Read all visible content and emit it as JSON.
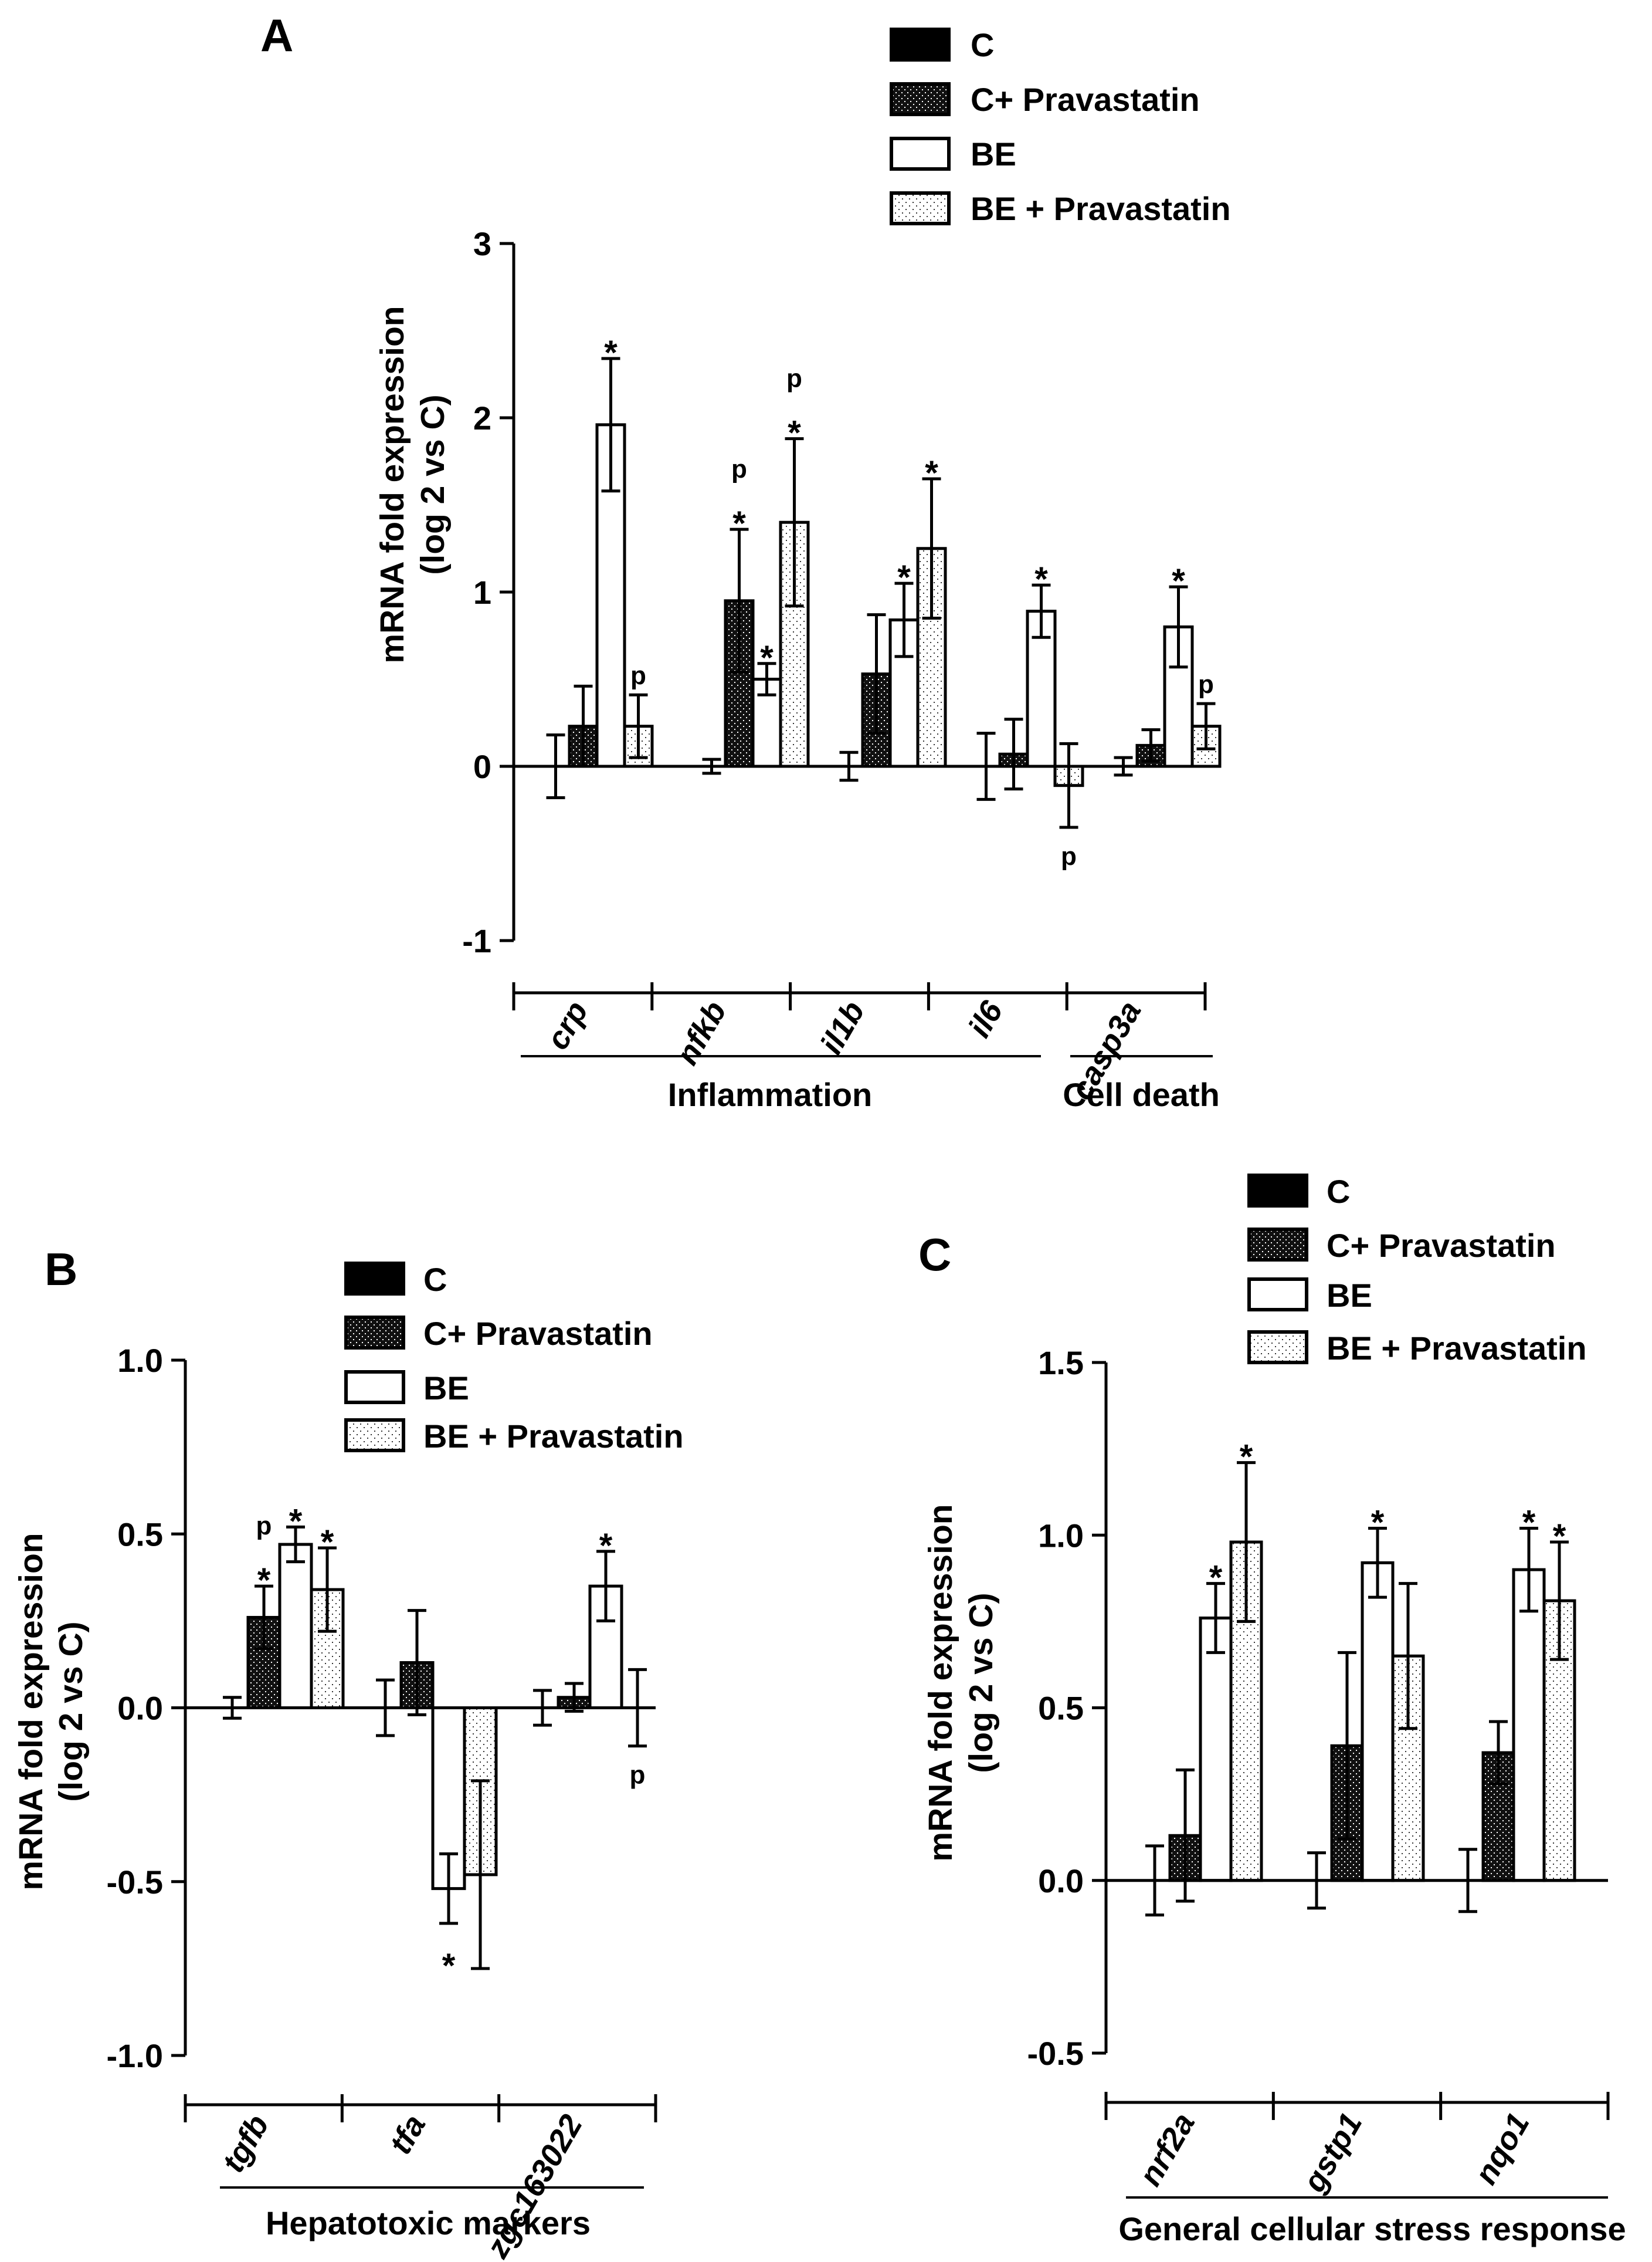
{
  "chart_data": [
    {
      "panel": "A",
      "type": "bar",
      "ylabel": [
        "mRNA fold expression",
        "(log 2 vs C)"
      ],
      "ylim": [
        -1,
        3
      ],
      "yticks": [
        -1,
        0,
        1,
        2,
        3
      ],
      "ytick_labels": [
        "-1",
        "0",
        "1",
        "2",
        "3"
      ],
      "categories": [
        "crp",
        "nfkb",
        "il1b",
        "il6",
        "casp3a"
      ],
      "legend": [
        "C",
        "C+ Pravastatin",
        "BE",
        "BE + Pravastatin"
      ],
      "series": [
        {
          "name": "C",
          "values": [
            0,
            0,
            0,
            0,
            0
          ],
          "errors": [
            0.18,
            0.04,
            0.08,
            0.19,
            0.05
          ]
        },
        {
          "name": "C+ Pravastatin",
          "values": [
            0.23,
            0.95,
            0.53,
            0.07,
            0.12
          ],
          "errors": [
            0.23,
            0.41,
            0.34,
            0.2,
            0.09
          ]
        },
        {
          "name": "BE",
          "values": [
            1.96,
            0.5,
            0.84,
            0.89,
            0.8
          ],
          "errors": [
            0.38,
            0.09,
            0.21,
            0.15,
            0.23
          ]
        },
        {
          "name": "BE + Pravastatin",
          "values": [
            0.23,
            1.4,
            1.25,
            -0.11,
            0.23
          ],
          "errors": [
            0.18,
            0.48,
            0.4,
            0.24,
            0.13
          ]
        }
      ],
      "annotations": [
        {
          "series": 2,
          "category": 0,
          "text": "*",
          "pos": "above"
        },
        {
          "series": 3,
          "category": 0,
          "text": "p",
          "pos": "above"
        },
        {
          "series": 1,
          "category": 1,
          "text": "p",
          "pos": "above2"
        },
        {
          "series": 1,
          "category": 1,
          "text": "*",
          "pos": "above"
        },
        {
          "series": 2,
          "category": 1,
          "text": "*",
          "pos": "above"
        },
        {
          "series": 3,
          "category": 1,
          "text": "p",
          "pos": "above2"
        },
        {
          "series": 3,
          "category": 1,
          "text": "*",
          "pos": "above"
        },
        {
          "series": 2,
          "category": 2,
          "text": "*",
          "pos": "above"
        },
        {
          "series": 3,
          "category": 2,
          "text": "*",
          "pos": "above"
        },
        {
          "series": 2,
          "category": 3,
          "text": "*",
          "pos": "above"
        },
        {
          "series": 3,
          "category": 3,
          "text": "p",
          "pos": "below"
        },
        {
          "series": 2,
          "category": 4,
          "text": "*",
          "pos": "above"
        },
        {
          "series": 3,
          "category": 4,
          "text": "p",
          "pos": "above"
        }
      ],
      "groups": [
        {
          "label": "Inflammation",
          "from": 0,
          "to": 3
        },
        {
          "label": "Cell death",
          "from": 4,
          "to": 4
        }
      ]
    },
    {
      "panel": "B",
      "type": "bar",
      "ylabel": [
        "mRNA fold expression",
        "(log 2 vs C)"
      ],
      "ylim": [
        -1,
        1
      ],
      "yticks": [
        -1,
        -0.5,
        0,
        0.5,
        1
      ],
      "ytick_labels": [
        "-1.0",
        "-0.5",
        "0.0",
        "0.5",
        "1.0"
      ],
      "categories": [
        "tgfb",
        "tfa",
        "zgc163022"
      ],
      "legend": [
        "C",
        "C+ Pravastatin",
        "BE",
        "BE + Pravastatin"
      ],
      "series": [
        {
          "name": "C",
          "values": [
            0,
            0,
            0
          ],
          "errors": [
            0.03,
            0.08,
            0.05
          ]
        },
        {
          "name": "C+ Pravastatin",
          "values": [
            0.26,
            0.13,
            0.03
          ],
          "errors": [
            0.09,
            0.15,
            0.04
          ]
        },
        {
          "name": "BE",
          "values": [
            0.47,
            -0.52,
            0.35
          ],
          "errors": [
            0.05,
            0.1,
            0.1
          ]
        },
        {
          "name": "BE + Pravastatin",
          "values": [
            0.34,
            -0.48,
            0
          ],
          "errors": [
            0.12,
            0.27,
            0.11
          ]
        }
      ],
      "annotations": [
        {
          "series": 1,
          "category": 0,
          "text": "p",
          "pos": "above2"
        },
        {
          "series": 1,
          "category": 0,
          "text": "*",
          "pos": "above"
        },
        {
          "series": 2,
          "category": 0,
          "text": "*",
          "pos": "above"
        },
        {
          "series": 3,
          "category": 0,
          "text": "*",
          "pos": "above"
        },
        {
          "series": 2,
          "category": 1,
          "text": "*",
          "pos": "below"
        },
        {
          "series": 2,
          "category": 2,
          "text": "*",
          "pos": "above"
        },
        {
          "series": 3,
          "category": 2,
          "text": "p",
          "pos": "below"
        }
      ],
      "groups": [
        {
          "label": "Hepatotoxic markers",
          "from": 0,
          "to": 2
        }
      ]
    },
    {
      "panel": "C",
      "type": "bar",
      "ylabel": [
        "mRNA fold expression",
        "(log 2 vs C)"
      ],
      "ylim": [
        -0.5,
        1.5
      ],
      "yticks": [
        -0.5,
        0,
        0.5,
        1,
        1.5
      ],
      "ytick_labels": [
        "-0.5",
        "0.0",
        "0.5",
        "1.0",
        "1.5"
      ],
      "categories": [
        "nrf2a",
        "gstp1",
        "nqo1"
      ],
      "legend": [
        "C",
        "C+ Pravastatin",
        "BE",
        "BE + Pravastatin"
      ],
      "series": [
        {
          "name": "C",
          "values": [
            0,
            0,
            0
          ],
          "errors": [
            0.1,
            0.08,
            0.09
          ]
        },
        {
          "name": "C+ Pravastatin",
          "values": [
            0.13,
            0.39,
            0.37
          ],
          "errors": [
            0.19,
            0.27,
            0.09
          ]
        },
        {
          "name": "BE",
          "values": [
            0.76,
            0.92,
            0.9
          ],
          "errors": [
            0.1,
            0.1,
            0.12
          ]
        },
        {
          "name": "BE + Pravastatin",
          "values": [
            0.98,
            0.65,
            0.81
          ],
          "errors": [
            0.23,
            0.21,
            0.17
          ]
        }
      ],
      "annotations": [
        {
          "series": 2,
          "category": 0,
          "text": "*",
          "pos": "above"
        },
        {
          "series": 3,
          "category": 0,
          "text": "*",
          "pos": "above"
        },
        {
          "series": 2,
          "category": 1,
          "text": "*",
          "pos": "above"
        },
        {
          "series": 2,
          "category": 2,
          "text": "*",
          "pos": "above"
        },
        {
          "series": 3,
          "category": 2,
          "text": "*",
          "pos": "above"
        }
      ],
      "groups": [
        {
          "label": "General cellular stress response",
          "from": 0,
          "to": 2
        }
      ]
    }
  ]
}
